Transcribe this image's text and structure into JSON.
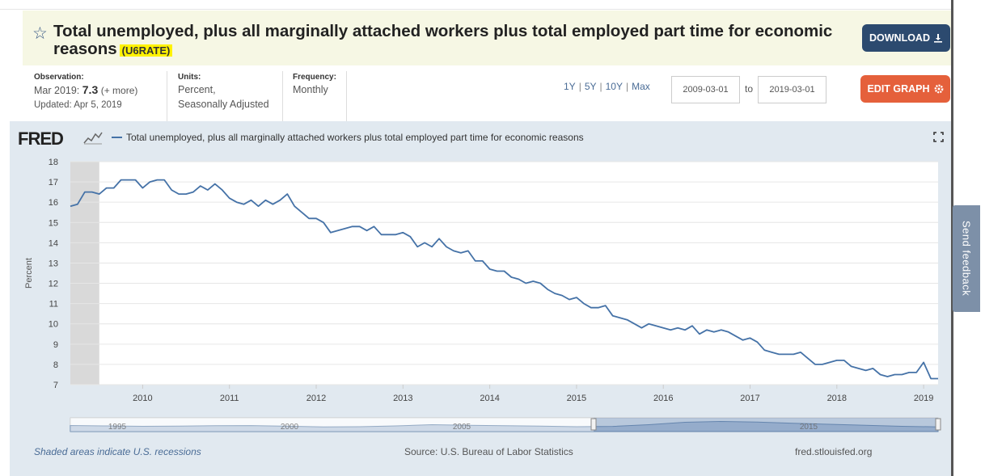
{
  "header": {
    "title": "Total unemployed, plus all marginally attached workers plus total employed part time for economic reasons",
    "series_id": "(U6RATE)",
    "download_label": "DOWNLOAD",
    "edit_graph_label": "EDIT GRAPH"
  },
  "meta": {
    "observation_label": "Observation:",
    "observation_date": "Mar 2019:",
    "observation_value": "7.3",
    "observation_more": "(+ more)",
    "updated": "Updated: Apr 5, 2019",
    "units_label": "Units:",
    "units_line1": "Percent,",
    "units_line2": "Seasonally Adjusted",
    "frequency_label": "Frequency:",
    "frequency_value": "Monthly"
  },
  "range": {
    "options": [
      "1Y",
      "5Y",
      "10Y",
      "Max"
    ],
    "start": "2009-03-01",
    "to_label": "to",
    "end": "2019-03-01"
  },
  "graph": {
    "logo": "FRED",
    "legend": "Total unemployed, plus all marginally attached workers plus total employed part time for economic reasons",
    "footer_recessions": "Shaded areas indicate U.S. recessions",
    "footer_source": "Source: U.S. Bureau of Labor Statistics",
    "footer_site": "fred.stlouisfed.org"
  },
  "feedback": "Send feedback",
  "colors": {
    "line": "#4572a7",
    "recession": "#d9d9d9",
    "header_bg": "#f6f7e4",
    "download_bg": "#2c4a6f",
    "edit_bg": "#e5603b",
    "highlight": "#fff200"
  },
  "icons": {
    "star": "star-icon",
    "download": "download-icon",
    "gear": "gear-icon",
    "expand": "expand-icon",
    "spark": "fred-sparkline-icon"
  },
  "navigator": {
    "labels": [
      "1995",
      "2000",
      "2005",
      "2015"
    ]
  },
  "chart_data": {
    "type": "line",
    "title": "Total unemployed, plus all marginally attached workers plus total employed part time for economic reasons",
    "xlabel": "",
    "ylabel": "Percent",
    "ylim": [
      7,
      18
    ],
    "yticks": [
      7,
      8,
      9,
      10,
      11,
      12,
      13,
      14,
      15,
      16,
      17,
      18
    ],
    "xticks": [
      "2010",
      "2011",
      "2012",
      "2013",
      "2014",
      "2015",
      "2016",
      "2017",
      "2018",
      "2019"
    ],
    "x_start": "2009-03",
    "x_end": "2019-03",
    "recession": {
      "start": "2009-03",
      "end": "2009-06"
    },
    "series": [
      {
        "name": "U6RATE",
        "values": [
          15.8,
          15.9,
          16.5,
          16.5,
          16.4,
          16.7,
          16.7,
          17.1,
          17.1,
          17.1,
          16.7,
          17.0,
          17.1,
          17.1,
          16.6,
          16.4,
          16.4,
          16.5,
          16.8,
          16.6,
          16.9,
          16.6,
          16.2,
          16.0,
          15.9,
          16.1,
          15.8,
          16.1,
          15.9,
          16.1,
          16.4,
          15.8,
          15.5,
          15.2,
          15.2,
          15.0,
          14.5,
          14.6,
          14.7,
          14.8,
          14.8,
          14.6,
          14.8,
          14.4,
          14.4,
          14.4,
          14.5,
          14.3,
          13.8,
          14.0,
          13.8,
          14.2,
          13.8,
          13.6,
          13.5,
          13.6,
          13.1,
          13.1,
          12.7,
          12.6,
          12.6,
          12.3,
          12.2,
          12.0,
          12.1,
          12.0,
          11.7,
          11.5,
          11.4,
          11.2,
          11.3,
          11.0,
          10.8,
          10.8,
          10.9,
          10.4,
          10.3,
          10.2,
          10.0,
          9.8,
          10.0,
          9.9,
          9.8,
          9.7,
          9.8,
          9.7,
          9.9,
          9.5,
          9.7,
          9.6,
          9.7,
          9.6,
          9.4,
          9.2,
          9.3,
          9.1,
          8.7,
          8.6,
          8.5,
          8.5,
          8.5,
          8.6,
          8.3,
          8.0,
          8.0,
          8.1,
          8.2,
          8.2,
          7.9,
          7.8,
          7.7,
          7.8,
          7.5,
          7.4,
          7.5,
          7.5,
          7.6,
          7.6,
          8.1,
          7.3,
          7.3
        ]
      }
    ]
  }
}
